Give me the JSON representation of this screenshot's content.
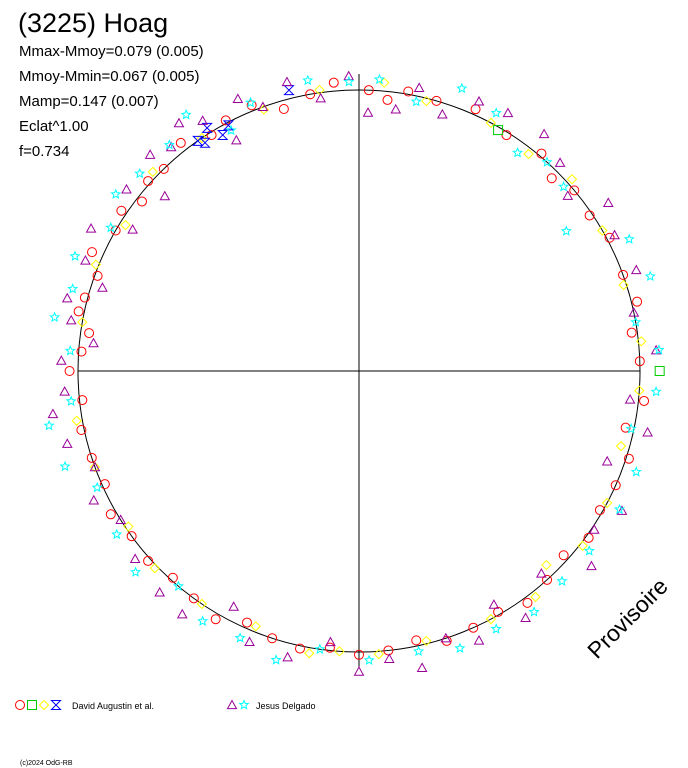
{
  "chart_data": {
    "type": "scatter",
    "title": "(3225) Hoag",
    "stats": [
      "Mmax-Mmoy=0.079 (0.005)",
      "Mmoy-Mmin=0.067 (0.005)",
      "Mamp=0.147 (0.007)",
      "Eclat^1.00",
      "f=0.734"
    ],
    "watermark": "Provisoire",
    "copyright": "(c)2024 OdG-RB",
    "legend": [
      {
        "label": "David Augustin et al.",
        "symbols": [
          "circle",
          "square",
          "diamond",
          "hourglass"
        ],
        "colors": [
          "#ff0000",
          "#00cc00",
          "#ffff00",
          "#0000ff"
        ]
      },
      {
        "label": "Jesus Delgado",
        "symbols": [
          "triangle",
          "star"
        ],
        "colors": [
          "#990099",
          "#00ffff"
        ]
      }
    ],
    "series": [
      {
        "symbol": "circle",
        "color": "#ff0000",
        "points": [
          [
            180,
            1.03
          ],
          [
            176,
            0.99
          ],
          [
            172,
            0.97
          ],
          [
            168,
            1.02
          ],
          [
            165,
            1.01
          ],
          [
            160,
            0.99
          ],
          [
            156,
            1.04
          ],
          [
            150,
            1.0
          ],
          [
            146,
            1.02
          ],
          [
            142,
            0.98
          ],
          [
            138,
            1.01
          ],
          [
            134,
            1.0
          ],
          [
            128,
            1.03
          ],
          [
            122,
            0.99
          ],
          [
            118,
            1.01
          ],
          [
            112,
            1.02
          ],
          [
            106,
            0.97
          ],
          [
            100,
            1.0
          ],
          [
            95,
            1.03
          ],
          [
            88,
            1.0
          ],
          [
            84,
            0.97
          ],
          [
            80,
            1.01
          ],
          [
            74,
            1.0
          ],
          [
            66,
            1.02
          ],
          [
            58,
            0.99
          ],
          [
            50,
            1.01
          ],
          [
            45,
            0.97
          ],
          [
            40,
            1.0
          ],
          [
            34,
            0.99
          ],
          [
            28,
            1.01
          ],
          [
            20,
            1.0
          ],
          [
            14,
            1.02
          ],
          [
            8,
            0.98
          ],
          [
            2,
            1.0
          ],
          [
            -6,
            1.02
          ],
          [
            -12,
            0.97
          ],
          [
            -18,
            1.01
          ],
          [
            -24,
            1.0
          ],
          [
            -30,
            0.99
          ],
          [
            -36,
            1.01
          ],
          [
            -42,
            0.98
          ],
          [
            -48,
            1.0
          ],
          [
            -54,
            1.02
          ],
          [
            -60,
            0.99
          ],
          [
            -66,
            1.0
          ],
          [
            -72,
            1.01
          ],
          [
            -78,
            0.98
          ],
          [
            -84,
            1.0
          ],
          [
            -90,
            1.01
          ],
          [
            -96,
            0.99
          ],
          [
            -102,
            1.01
          ],
          [
            -108,
            1.0
          ],
          [
            -114,
            0.98
          ],
          [
            -120,
            1.02
          ],
          [
            -126,
            1.0
          ],
          [
            -132,
            0.99
          ],
          [
            -138,
            1.01
          ],
          [
            -144,
            1.0
          ],
          [
            -150,
            1.02
          ],
          [
            -156,
            0.99
          ],
          [
            -162,
            1.0
          ],
          [
            -168,
            1.01
          ],
          [
            -174,
            0.99
          ]
        ]
      },
      {
        "symbol": "diamond",
        "color": "#ffff00",
        "points": [
          [
            170,
            1.0
          ],
          [
            158,
            1.01
          ],
          [
            148,
            0.98
          ],
          [
            136,
            1.02
          ],
          [
            124,
            1.0
          ],
          [
            110,
            0.99
          ],
          [
            98,
            1.01
          ],
          [
            85,
            1.03
          ],
          [
            76,
            0.99
          ],
          [
            62,
            1.0
          ],
          [
            52,
            0.98
          ],
          [
            42,
            1.02
          ],
          [
            30,
            1.0
          ],
          [
            18,
            0.99
          ],
          [
            6,
            1.01
          ],
          [
            -4,
            1.0
          ],
          [
            -16,
            0.97
          ],
          [
            -28,
            1.0
          ],
          [
            -38,
            1.01
          ],
          [
            -46,
            0.96
          ],
          [
            -52,
            1.02
          ],
          [
            -62,
            1.0
          ],
          [
            -76,
            0.99
          ],
          [
            -86,
            1.01
          ],
          [
            -94,
            1.0
          ],
          [
            -100,
            1.02
          ],
          [
            -112,
            0.98
          ],
          [
            -124,
            1.0
          ],
          [
            -136,
            1.01
          ],
          [
            -146,
            0.99
          ],
          [
            -160,
            1.0
          ],
          [
            -170,
            1.02
          ]
        ]
      },
      {
        "symbol": "square",
        "color": "#00cc00",
        "points": [
          [
            0,
            1.07
          ],
          [
            60,
            0.99
          ]
        ]
      },
      {
        "symbol": "hourglass",
        "color": "#0000ff",
        "points": [
          [
            125,
            1.0
          ],
          [
            122,
            1.02
          ],
          [
            118,
            0.99
          ],
          [
            104,
            1.03
          ],
          [
            120,
            0.97
          ],
          [
            124,
            0.98
          ]
        ]
      },
      {
        "symbol": "triangle",
        "color": "#990099",
        "points": [
          [
            178,
            1.06
          ],
          [
            174,
            0.95
          ],
          [
            170,
            1.04
          ],
          [
            166,
            1.07
          ],
          [
            162,
            0.96
          ],
          [
            158,
            1.05
          ],
          [
            152,
            1.08
          ],
          [
            148,
            0.95
          ],
          [
            142,
            1.05
          ],
          [
            138,
            0.93
          ],
          [
            134,
            1.07
          ],
          [
            130,
            1.04
          ],
          [
            126,
            1.09
          ],
          [
            122,
            1.05
          ],
          [
            118,
            0.93
          ],
          [
            114,
            1.06
          ],
          [
            110,
            1.0
          ],
          [
            104,
            1.06
          ],
          [
            98,
            0.98
          ],
          [
            92,
            1.05
          ],
          [
            88,
            0.92
          ],
          [
            82,
            0.94
          ],
          [
            78,
            1.03
          ],
          [
            72,
            0.96
          ],
          [
            66,
            1.05
          ],
          [
            60,
            1.06
          ],
          [
            52,
            1.07
          ],
          [
            46,
            1.03
          ],
          [
            40,
            0.97
          ],
          [
            34,
            1.07
          ],
          [
            28,
            1.03
          ],
          [
            20,
            1.05
          ],
          [
            12,
            1.0
          ],
          [
            4,
            1.06
          ],
          [
            -6,
            0.97
          ],
          [
            -12,
            1.05
          ],
          [
            -20,
            0.94
          ],
          [
            -28,
            1.06
          ],
          [
            -34,
            1.01
          ],
          [
            -40,
            1.08
          ],
          [
            -48,
            0.97
          ],
          [
            -56,
            1.06
          ],
          [
            -60,
            0.96
          ],
          [
            -66,
            1.05
          ],
          [
            -72,
            1.0
          ],
          [
            -78,
            1.08
          ],
          [
            -84,
            1.03
          ],
          [
            -90,
            1.07
          ],
          [
            -96,
            0.97
          ],
          [
            -104,
            1.05
          ],
          [
            -112,
            1.04
          ],
          [
            -118,
            0.95
          ],
          [
            -126,
            1.07
          ],
          [
            -132,
            1.06
          ],
          [
            -140,
            1.04
          ],
          [
            -148,
            1.0
          ],
          [
            -154,
            1.05
          ],
          [
            -160,
            1.0
          ],
          [
            -166,
            1.07
          ],
          [
            -172,
            1.1
          ],
          [
            -176,
            1.05
          ]
        ]
      },
      {
        "symbol": "star",
        "color": "#00ffff",
        "points": [
          [
            176,
            1.03
          ],
          [
            170,
            1.1
          ],
          [
            164,
            1.06
          ],
          [
            158,
            1.09
          ],
          [
            150,
            1.02
          ],
          [
            144,
            1.07
          ],
          [
            138,
            1.05
          ],
          [
            130,
            1.05
          ],
          [
            124,
            1.1
          ],
          [
            118,
            0.97
          ],
          [
            112,
            1.03
          ],
          [
            100,
            1.05
          ],
          [
            92,
            1.03
          ],
          [
            86,
            1.04
          ],
          [
            78,
            0.98
          ],
          [
            70,
            1.07
          ],
          [
            62,
            1.04
          ],
          [
            54,
            0.96
          ],
          [
            48,
            1.0
          ],
          [
            42,
            0.98
          ],
          [
            34,
            0.89
          ],
          [
            26,
            1.07
          ],
          [
            18,
            1.09
          ],
          [
            10,
            1.0
          ],
          [
            4,
            1.07
          ],
          [
            -4,
            1.06
          ],
          [
            -12,
            0.99
          ],
          [
            -20,
            1.05
          ],
          [
            -28,
            1.05
          ],
          [
            -38,
            1.04
          ],
          [
            -46,
            1.04
          ],
          [
            -54,
            1.06
          ],
          [
            -62,
            1.04
          ],
          [
            -70,
            1.05
          ],
          [
            -78,
            1.02
          ],
          [
            -88,
            1.03
          ],
          [
            -98,
            1.0
          ],
          [
            -106,
            1.07
          ],
          [
            -114,
            1.04
          ],
          [
            -122,
            1.05
          ],
          [
            -130,
            1.0
          ],
          [
            -138,
            1.07
          ],
          [
            -146,
            1.04
          ],
          [
            -156,
            1.02
          ],
          [
            -162,
            1.1
          ],
          [
            -170,
            1.12
          ],
          [
            -174,
            1.03
          ]
        ]
      }
    ]
  }
}
